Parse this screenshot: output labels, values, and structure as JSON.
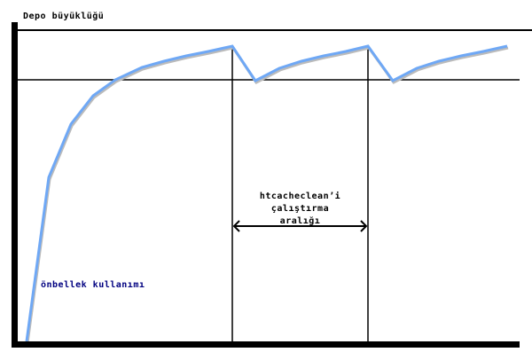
{
  "diagram": {
    "y_axis_label": "Depo büyüklüğü",
    "series_label": "önbellek kullanımı",
    "interval_label": [
      "htcacheclean’i",
      "çalıştırma",
      "aralığı"
    ],
    "colors": {
      "curve": "#6fa8f5",
      "axes": "#000000",
      "series_label": "#000080"
    }
  }
}
